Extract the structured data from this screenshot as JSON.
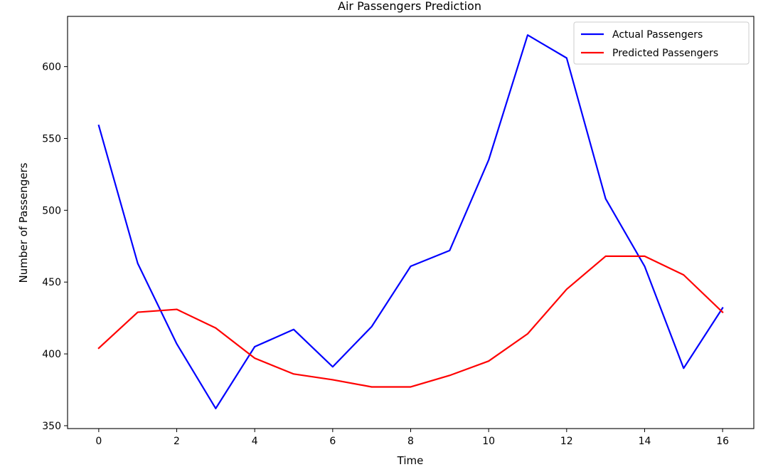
{
  "chart_data": {
    "type": "line",
    "title": "Air Passengers Prediction",
    "xlabel": "Time",
    "ylabel": "Number of Passengers",
    "x": [
      0,
      1,
      2,
      3,
      4,
      5,
      6,
      7,
      8,
      9,
      10,
      11,
      12,
      13,
      14,
      15,
      16
    ],
    "xlim": [
      -0.8,
      16.8
    ],
    "ylim": [
      348,
      635
    ],
    "xticks": [
      0,
      2,
      4,
      6,
      8,
      10,
      12,
      14,
      16
    ],
    "xtick_labels": [
      "0",
      "2",
      "4",
      "6",
      "8",
      "10",
      "12",
      "14",
      "16"
    ],
    "yticks": [
      350,
      400,
      450,
      500,
      550,
      600
    ],
    "ytick_labels": [
      "350",
      "400",
      "450",
      "500",
      "550",
      "600"
    ],
    "grid": false,
    "legend_position": "top-right",
    "series": [
      {
        "name": "Actual Passengers",
        "color": "#0000ff",
        "values": [
          559,
          463,
          407,
          362,
          405,
          417,
          391,
          419,
          461,
          472,
          535,
          622,
          606,
          508,
          461,
          390,
          432
        ]
      },
      {
        "name": "Predicted Passengers",
        "color": "#ff0000",
        "values": [
          404,
          429,
          431,
          418,
          397,
          386,
          382,
          377,
          377,
          385,
          395,
          414,
          445,
          468,
          468,
          455,
          429
        ]
      }
    ]
  }
}
